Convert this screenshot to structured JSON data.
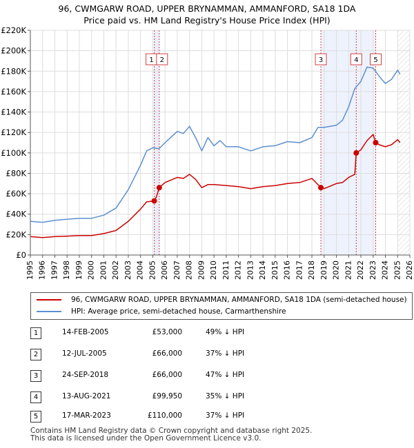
{
  "title_line1": "96, CWMGARW ROAD, UPPER BRYNAMMAN, AMMANFORD, SA18 1DA",
  "title_line2": "Price paid vs. HM Land Registry's House Price Index (HPI)",
  "chart_data": {
    "type": "line",
    "title": "96, CWMGARW ROAD, UPPER BRYNAMMAN, AMMANFORD, SA18 1DA - Price paid vs. HM Land Registry's House Price Index (HPI)",
    "xlabel": "",
    "ylabel": "",
    "xlim": [
      1995,
      2026
    ],
    "ylim": [
      0,
      220000
    ],
    "y_ticks": [
      0,
      20000,
      40000,
      60000,
      80000,
      100000,
      120000,
      140000,
      160000,
      180000,
      200000,
      220000
    ],
    "y_tick_labels": [
      "£0",
      "£20K",
      "£40K",
      "£60K",
      "£80K",
      "£100K",
      "£120K",
      "£140K",
      "£160K",
      "£180K",
      "£200K",
      "£220K"
    ],
    "x_ticks": [
      1995,
      1996,
      1997,
      1998,
      1999,
      2000,
      2001,
      2002,
      2003,
      2004,
      2005,
      2006,
      2007,
      2008,
      2009,
      2010,
      2011,
      2012,
      2013,
      2014,
      2015,
      2016,
      2017,
      2018,
      2019,
      2020,
      2021,
      2022,
      2023,
      2024,
      2025,
      2026
    ],
    "grid": true,
    "hatched_future_from": 2025.0,
    "series": [
      {
        "name": "96, CWMGARW ROAD, UPPER BRYNAMMAN, AMMANFORD, SA18 1DA (semi-detached house)",
        "color": "#cc0000",
        "x": [
          1995.0,
          1996.0,
          1997.0,
          1998.0,
          1999.0,
          2000.0,
          2001.0,
          2002.0,
          2003.0,
          2004.0,
          2004.5,
          2005.12,
          2005.3,
          2005.53,
          2006.0,
          2007.0,
          2007.5,
          2008.0,
          2008.5,
          2009.0,
          2009.5,
          2010.0,
          2011.0,
          2012.0,
          2013.0,
          2014.0,
          2015.0,
          2016.0,
          2017.0,
          2018.0,
          2018.73,
          2019.0,
          2020.0,
          2020.5,
          2021.0,
          2021.5,
          2021.62,
          2022.0,
          2022.5,
          2023.0,
          2023.21,
          2023.5,
          2024.0,
          2024.5,
          2025.0,
          2025.2
        ],
        "values": [
          18000,
          17000,
          18000,
          18500,
          19000,
          19000,
          21000,
          24000,
          33000,
          45000,
          52000,
          53000,
          57000,
          66000,
          71000,
          76000,
          75000,
          79000,
          74000,
          66000,
          69000,
          69000,
          68000,
          67000,
          65000,
          67000,
          68000,
          70000,
          71000,
          75000,
          66000,
          65000,
          70000,
          71000,
          76000,
          79000,
          99950,
          103000,
          112000,
          118000,
          110000,
          108000,
          106000,
          108000,
          113000,
          110000
        ]
      },
      {
        "name": "HPI: Average price, semi-detached house, Carmarthenshire",
        "color": "#5b8fd0",
        "x": [
          1995.0,
          1996.0,
          1997.0,
          1998.0,
          1999.0,
          2000.0,
          2001.0,
          2002.0,
          2003.0,
          2004.0,
          2004.5,
          2005.0,
          2005.5,
          2006.0,
          2007.0,
          2007.5,
          2008.0,
          2008.5,
          2009.0,
          2009.5,
          2010.0,
          2010.5,
          2011.0,
          2012.0,
          2013.0,
          2014.0,
          2015.0,
          2016.0,
          2017.0,
          2018.0,
          2018.5,
          2019.0,
          2020.0,
          2020.5,
          2021.0,
          2021.5,
          2022.0,
          2022.5,
          2023.0,
          2023.5,
          2024.0,
          2024.5,
          2025.0,
          2025.2
        ],
        "values": [
          33000,
          32000,
          34000,
          35000,
          36000,
          36000,
          39000,
          46000,
          64000,
          88000,
          102000,
          105000,
          104000,
          110000,
          121000,
          119000,
          126000,
          115000,
          102000,
          115000,
          107000,
          112000,
          106000,
          106000,
          102000,
          106000,
          107000,
          111000,
          110000,
          115000,
          125000,
          125000,
          127000,
          132000,
          145000,
          163000,
          170000,
          184000,
          183000,
          175000,
          168000,
          172000,
          181000,
          177000
        ]
      }
    ],
    "sales": [
      {
        "id": "1",
        "x": 2005.12,
        "price": 53000,
        "date": "14-FEB-2005",
        "price_label": "£53,000",
        "hpi": "49% ↓ HPI"
      },
      {
        "id": "2",
        "x": 2005.53,
        "price": 66000,
        "date": "12-JUL-2005",
        "price_label": "£66,000",
        "hpi": "37% ↓ HPI"
      },
      {
        "id": "3",
        "x": 2018.73,
        "price": 66000,
        "date": "24-SEP-2018",
        "price_label": "£66,000",
        "hpi": "47% ↓ HPI"
      },
      {
        "id": "4",
        "x": 2021.62,
        "price": 99950,
        "date": "13-AUG-2021",
        "price_label": "£99,950",
        "hpi": "35% ↓ HPI"
      },
      {
        "id": "5",
        "x": 2023.21,
        "price": 110000,
        "date": "17-MAR-2023",
        "price_label": "£110,000",
        "hpi": "37% ↓ HPI"
      }
    ]
  },
  "legend": {
    "red_label": "96, CWMGARW ROAD, UPPER BRYNAMMAN, AMMANFORD, SA18 1DA (semi-detached house)",
    "blue_label": "HPI: Average price, semi-detached house, Carmarthenshire",
    "red_color": "#cc0000",
    "blue_color": "#5b8fd0"
  },
  "footer": {
    "line1": "Contains HM Land Registry data © Crown copyright and database right 2025.",
    "line2": "This data is licensed under the Open Government Licence v3.0."
  }
}
